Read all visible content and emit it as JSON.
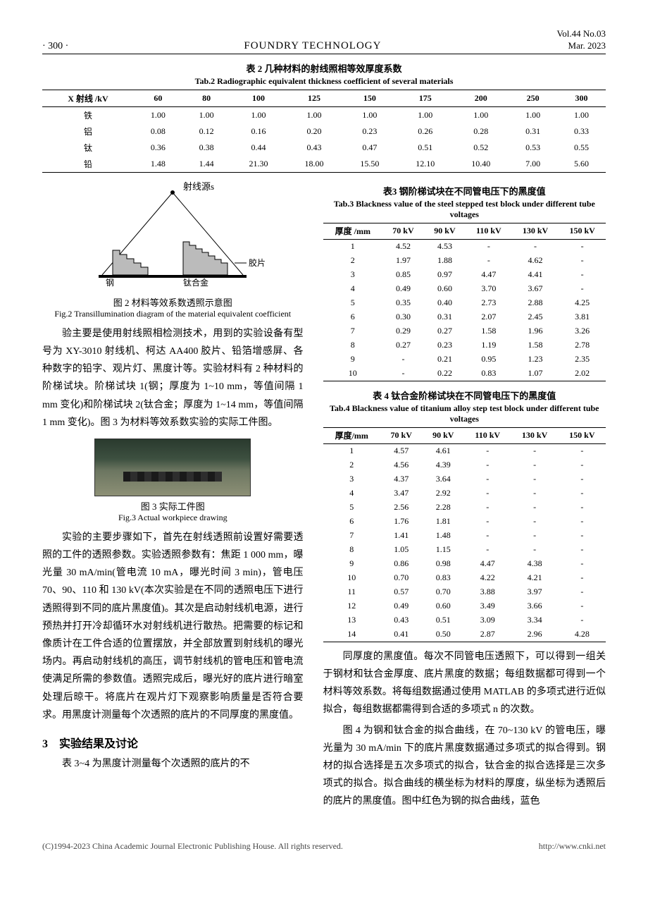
{
  "header": {
    "page": "· 300 ·",
    "journal": "FOUNDRY TECHNOLOGY",
    "vol": "Vol.44 No.03",
    "date": "Mar. 2023"
  },
  "table2": {
    "title_zh": "表 2 几种材料的射线照相等效厚度系数",
    "title_en": "Tab.2 Radiographic equivalent thickness coefficient of several materials",
    "head": [
      "X 射线 /kV",
      "60",
      "80",
      "100",
      "125",
      "150",
      "175",
      "200",
      "250",
      "300"
    ],
    "rows": [
      [
        "铁",
        "1.00",
        "1.00",
        "1.00",
        "1.00",
        "1.00",
        "1.00",
        "1.00",
        "1.00",
        "1.00"
      ],
      [
        "铝",
        "0.08",
        "0.12",
        "0.16",
        "0.20",
        "0.23",
        "0.26",
        "0.28",
        "0.31",
        "0.33"
      ],
      [
        "钛",
        "0.36",
        "0.38",
        "0.44",
        "0.43",
        "0.47",
        "0.51",
        "0.52",
        "0.53",
        "0.55"
      ],
      [
        "铅",
        "1.48",
        "1.44",
        "21.30",
        "18.00",
        "15.50",
        "12.10",
        "10.40",
        "7.00",
        "5.60"
      ]
    ]
  },
  "fig2": {
    "label_source": "射线源s",
    "label_steel": "钢",
    "label_ti": "钛合金",
    "label_film": "胶片",
    "caption_zh": "图 2 材料等效系数透照示意图",
    "caption_en": "Fig.2 Transillumination diagram of the material equivalent coefficient"
  },
  "para1": "验主要是使用射线照相检测技术，用到的实验设备有型号为 XY-3010 射线机、柯达 AA400 胶片、铅箔增感屏、各种数字的铅字、观片灯、黑度计等。实验材料有 2 种材料的阶梯试块。阶梯试块 1(钢；厚度为 1~10 mm，等值间隔 1 mm 变化)和阶梯试块 2(钛合金；厚度为 1~14 mm，等值间隔 1 mm 变化)。图 3 为材料等效系数实验的实际工件图。",
  "fig3": {
    "caption_zh": "图 3 实际工件图",
    "caption_en": "Fig.3 Actual workpiece drawing"
  },
  "para2": "实验的主要步骤如下，首先在射线透照前设置好需要透照的工件的透照参数。实验透照参数有：焦距 1 000 mm，曝光量 30 mA/min(管电流 10 mA，曝光时间 3 min)，管电压 70、90、110 和 130 kV(本次实验是在不同的透照电压下进行透照得到不同的底片黑度值)。其次是启动射线机电源，进行预热并打开冷却循环水对射线机进行散热。把需要的标记和像质计在工件合适的位置摆放，并全部放置到射线机的曝光场内。再启动射线机的高压，调节射线机的管电压和管电流使满足所需的参数值。透照完成后，曝光好的底片进行暗室处理后晾干。将底片在观片灯下观察影响质量是否符合要求。用黑度计测量每个次透照的底片的不同厚度的黑度值。",
  "section3": "3　实验结果及讨论",
  "para3": "表 3~4 为黑度计测量每个次透照的底片的不",
  "table3": {
    "title_zh": "表3 钢阶梯试块在不同管电压下的黑度值",
    "title_en": "Tab.3 Blackness value of the steel stepped test block under different tube voltages",
    "head": [
      "厚度 /mm",
      "70 kV",
      "90 kV",
      "110 kV",
      "130 kV",
      "150 kV"
    ],
    "rows": [
      [
        "1",
        "4.52",
        "4.53",
        "-",
        "-",
        "-"
      ],
      [
        "2",
        "1.97",
        "1.88",
        "-",
        "4.62",
        "-"
      ],
      [
        "3",
        "0.85",
        "0.97",
        "4.47",
        "4.41",
        "-"
      ],
      [
        "4",
        "0.49",
        "0.60",
        "3.70",
        "3.67",
        "-"
      ],
      [
        "5",
        "0.35",
        "0.40",
        "2.73",
        "2.88",
        "4.25"
      ],
      [
        "6",
        "0.30",
        "0.31",
        "2.07",
        "2.45",
        "3.81"
      ],
      [
        "7",
        "0.29",
        "0.27",
        "1.58",
        "1.96",
        "3.26"
      ],
      [
        "8",
        "0.27",
        "0.23",
        "1.19",
        "1.58",
        "2.78"
      ],
      [
        "9",
        "-",
        "0.21",
        "0.95",
        "1.23",
        "2.35"
      ],
      [
        "10",
        "-",
        "0.22",
        "0.83",
        "1.07",
        "2.02"
      ]
    ]
  },
  "table4": {
    "title_zh": "表 4 钛合金阶梯试块在不同管电压下的黑度值",
    "title_en": "Tab.4 Blackness value of titanium alloy step test block under different tube voltages",
    "head": [
      "厚度/mm",
      "70 kV",
      "90 kV",
      "110 kV",
      "130 kV",
      "150 kV"
    ],
    "rows": [
      [
        "1",
        "4.57",
        "4.61",
        "-",
        "-",
        "-"
      ],
      [
        "2",
        "4.56",
        "4.39",
        "-",
        "-",
        "-"
      ],
      [
        "3",
        "4.37",
        "3.64",
        "-",
        "-",
        "-"
      ],
      [
        "4",
        "3.47",
        "2.92",
        "-",
        "-",
        "-"
      ],
      [
        "5",
        "2.56",
        "2.28",
        "-",
        "-",
        "-"
      ],
      [
        "6",
        "1.76",
        "1.81",
        "-",
        "-",
        "-"
      ],
      [
        "7",
        "1.41",
        "1.48",
        "-",
        "-",
        "-"
      ],
      [
        "8",
        "1.05",
        "1.15",
        "-",
        "-",
        "-"
      ],
      [
        "9",
        "0.86",
        "0.98",
        "4.47",
        "4.38",
        "-"
      ],
      [
        "10",
        "0.70",
        "0.83",
        "4.22",
        "4.21",
        "-"
      ],
      [
        "11",
        "0.57",
        "0.70",
        "3.88",
        "3.97",
        "-"
      ],
      [
        "12",
        "0.49",
        "0.60",
        "3.49",
        "3.66",
        "-"
      ],
      [
        "13",
        "0.43",
        "0.51",
        "3.09",
        "3.34",
        "-"
      ],
      [
        "14",
        "0.41",
        "0.50",
        "2.87",
        "2.96",
        "4.28"
      ]
    ]
  },
  "para4": "同厚度的黑度值。每次不同管电压透照下，可以得到一组关于钢材和钛合金厚度、底片黑度的数据；每组数据都可得到一个材料等效系数。将每组数据通过使用 MATLAB 的多项式进行近似拟合，每组数据都需得到合适的多项式 n 的次数。",
  "para5": "图 4 为钢和钛合金的拟合曲线，在 70~130 kV 的管电压，曝光量为 30 mA/min 下的底片黑度数据通过多项式的拟合得到。钢材的拟合选择是五次多项式的拟合，钛合金的拟合选择是三次多项式的拟合。拟合曲线的横坐标为材料的厚度，纵坐标为透照后的底片的黑度值。图中红色为钢的拟合曲线，蓝色",
  "footer": {
    "left": "(C)1994-2023 China Academic Journal Electronic Publishing House. All rights reserved.",
    "right": "http://www.cnki.net"
  }
}
